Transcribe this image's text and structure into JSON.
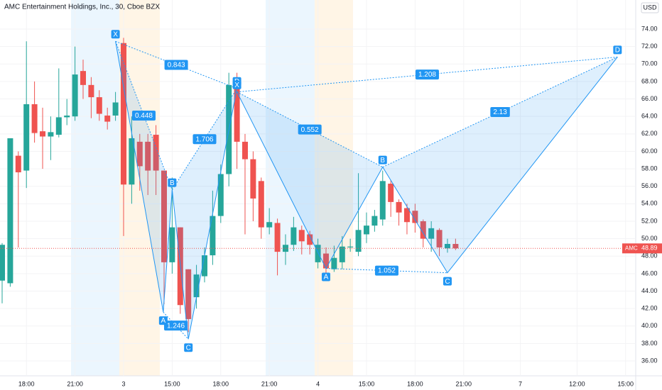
{
  "chart_data": {
    "type": "candlestick",
    "title": "AMC Entertainment Holdings, Inc., 30, Cboe BZX",
    "currency": "USD",
    "symbol": "AMC",
    "last_price": 48.89,
    "up_color": "#26a69a",
    "down_color": "#ef5350",
    "open": [
      45.2,
      44.9,
      59.5,
      57.8,
      65.4,
      62.3,
      61.7,
      61.9,
      63.9,
      64.0,
      69.2,
      67.6,
      66.2,
      64.1,
      64.1,
      72.4,
      56.2,
      61.1,
      61.1,
      61.9,
      57.8,
      47.3,
      51.3,
      46.5,
      43.3,
      45.7,
      48.1,
      52.6,
      57.4,
      68.4,
      61.1,
      59.1,
      56.6,
      51.3,
      51.8,
      48.5,
      49.3,
      51.0,
      50.5,
      47.3,
      48.3,
      46.5,
      47.3,
      49.0,
      48.5,
      50.5,
      51.5,
      52.2,
      56.3,
      54.2,
      53.5,
      53.2,
      52.0,
      50.0,
      51.0,
      48.9,
      49.4
    ],
    "high": [
      49.5,
      61.5,
      60.0,
      72.6,
      68.0,
      65.0,
      64.0,
      69.5,
      66.0,
      72.0,
      70.5,
      68.5,
      67.0,
      65.0,
      66.8,
      73.0,
      64.0,
      62.0,
      62.0,
      63.0,
      57.8,
      57.0,
      51.3,
      46.5,
      47.0,
      49.0,
      55.5,
      58.5,
      69.0,
      69.0,
      62.0,
      60.0,
      57.0,
      53.5,
      52.3,
      50.5,
      52.5,
      51.5,
      50.9,
      50.0,
      49.0,
      49.2,
      50.3,
      50.0,
      57.5,
      53.0,
      53.3,
      57.8,
      56.7,
      54.5,
      54.0,
      54.0,
      52.2,
      52.0,
      51.2,
      50.0,
      50.0
    ],
    "low": [
      42.6,
      44.5,
      49.0,
      55.8,
      61.0,
      58.0,
      59.0,
      61.6,
      63.0,
      63.5,
      66.0,
      63.8,
      63.5,
      62.5,
      63.5,
      50.3,
      54.0,
      55.5,
      55.0,
      55.0,
      42.5,
      46.0,
      41.4,
      39.3,
      42.0,
      45.0,
      47.0,
      51.8,
      56.0,
      58.0,
      50.5,
      52.0,
      50.0,
      50.5,
      45.8,
      47.0,
      48.6,
      48.2,
      48.2,
      46.6,
      45.5,
      46.2,
      46.5,
      48.5,
      48.0,
      49.5,
      50.8,
      51.5,
      52.5,
      51.5,
      50.5,
      50.7,
      49.0,
      48.5,
      48.0,
      48.4,
      48.7
    ],
    "close": [
      49.3,
      61.5,
      57.6,
      65.4,
      62.1,
      61.7,
      62.2,
      63.9,
      64.1,
      68.8,
      67.6,
      66.2,
      64.3,
      63.4,
      65.6,
      56.2,
      61.5,
      58.3,
      57.8,
      57.8,
      47.3,
      51.3,
      42.4,
      40.8,
      45.9,
      48.1,
      52.6,
      57.4,
      67.6,
      61.1,
      59.1,
      54.6,
      51.3,
      51.9,
      48.5,
      49.3,
      51.3,
      49.7,
      49.3,
      49.3,
      46.6,
      47.8,
      49.1,
      49.1,
      51.0,
      51.5,
      52.6,
      56.6,
      54.2,
      53.0,
      51.9,
      51.8,
      50.0,
      51.2,
      49.0,
      49.4,
      48.9
    ],
    "xlim": [
      -0.263,
      78.25
    ],
    "xticks": [
      {
        "value": 3,
        "label": "18:00"
      },
      {
        "value": 9,
        "label": "21:00"
      },
      {
        "value": 15,
        "label": "3"
      },
      {
        "value": 21,
        "label": "15:00"
      },
      {
        "value": 27,
        "label": "18:00"
      },
      {
        "value": 33,
        "label": "21:00"
      },
      {
        "value": 39,
        "label": "4"
      },
      {
        "value": 45,
        "label": "15:00"
      },
      {
        "value": 51,
        "label": "18:00"
      },
      {
        "value": 57,
        "label": "21:00"
      },
      {
        "value": 64,
        "label": "7"
      },
      {
        "value": 71,
        "label": "12:00"
      },
      {
        "value": 77,
        "label": "15:00"
      }
    ],
    "ylim": [
      34.3,
      77.33
    ],
    "yticks": [
      {
        "value": 36,
        "label": "36.00"
      },
      {
        "value": 38,
        "label": "38.00"
      },
      {
        "value": 40,
        "label": "40.00"
      },
      {
        "value": 42,
        "label": "42.00"
      },
      {
        "value": 44,
        "label": "44.00"
      },
      {
        "value": 46,
        "label": "46.00"
      },
      {
        "value": 48,
        "label": "48.00"
      },
      {
        "value": 50,
        "label": "50.00"
      },
      {
        "value": 52,
        "label": "52.00"
      },
      {
        "value": 54,
        "label": "54.00"
      },
      {
        "value": 56,
        "label": "56.00"
      },
      {
        "value": 58,
        "label": "58.00"
      },
      {
        "value": 60,
        "label": "60.00"
      },
      {
        "value": 62,
        "label": "62.00"
      },
      {
        "value": 64,
        "label": "64.00"
      },
      {
        "value": 66,
        "label": "66.00"
      },
      {
        "value": 68,
        "label": "68.00"
      },
      {
        "value": 70,
        "label": "70.00"
      },
      {
        "value": 72,
        "label": "72.00"
      },
      {
        "value": 74,
        "label": "74.00"
      }
    ],
    "patterns": [
      {
        "points": [
          {
            "label": "X",
            "x": 14.0,
            "y": 72.6
          },
          {
            "label": "A",
            "x": 19.9,
            "y": 41.6
          },
          {
            "label": "B",
            "x": 21.0,
            "y": 55.6
          },
          {
            "label": "C",
            "x": 23.0,
            "y": 38.5
          },
          {
            "label": "D",
            "x": 29.0,
            "y": 67.2
          }
        ],
        "ratios": {
          "XB": 0.448,
          "BD": 1.706,
          "XD": 0.843,
          "AC": 1.246
        }
      },
      {
        "points": [
          {
            "label": "X",
            "x": 29.0,
            "y": 66.8
          },
          {
            "label": "A",
            "x": 40.0,
            "y": 46.6
          },
          {
            "label": "B",
            "x": 47.0,
            "y": 58.2
          },
          {
            "label": "C",
            "x": 55.0,
            "y": 46.1
          },
          {
            "label": "D",
            "x": 76.0,
            "y": 70.8
          }
        ],
        "ratios": {
          "XB": 0.552,
          "BD": 2.13,
          "XD": 1.208,
          "AC": 1.052
        }
      }
    ]
  }
}
